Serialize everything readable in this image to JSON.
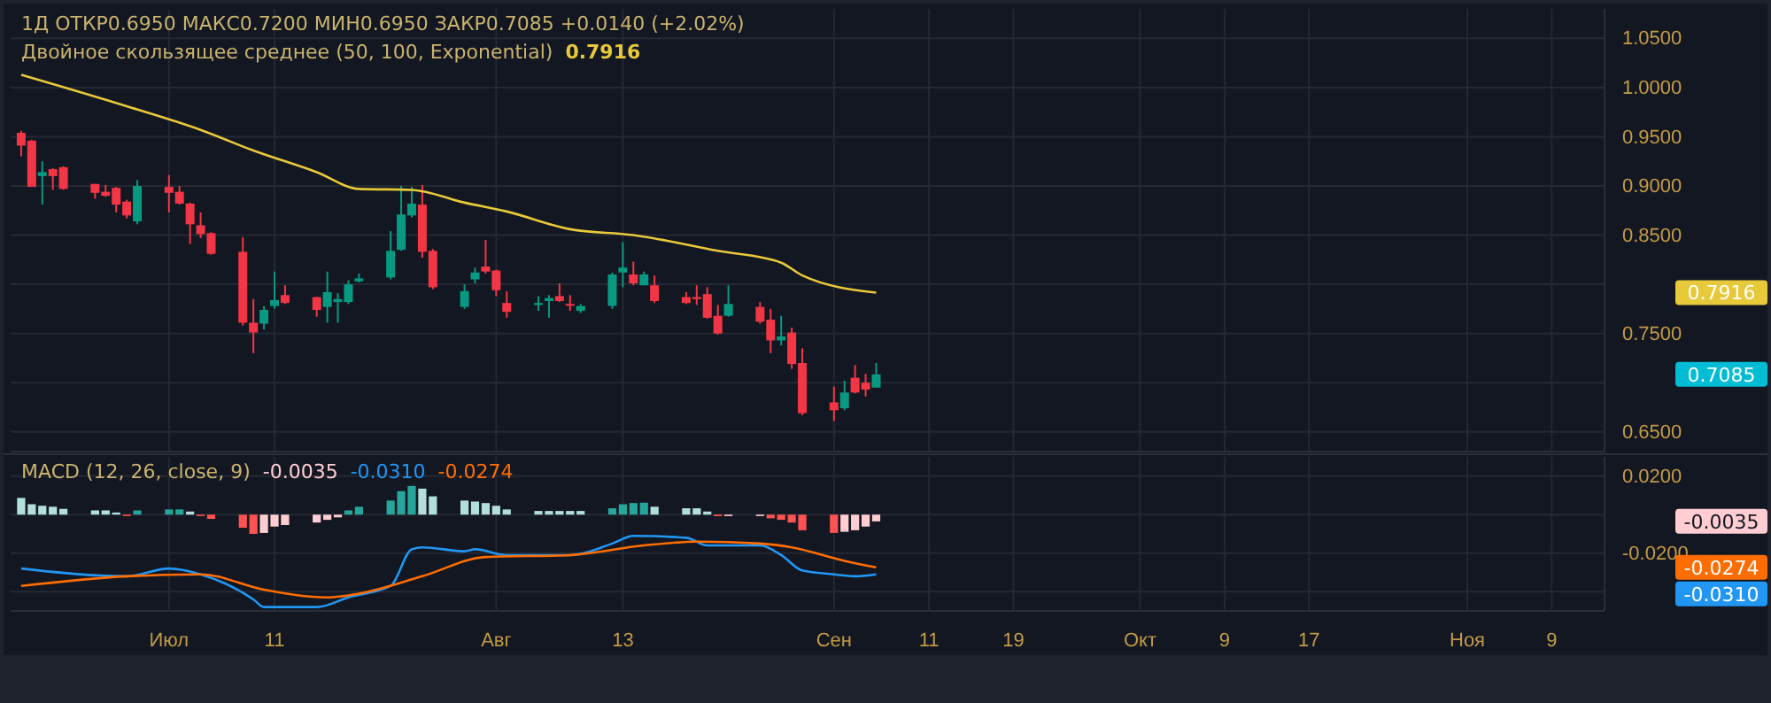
{
  "chart_data": [
    {
      "type": "candlestick",
      "title": "1Д ОТКР0.6950 МАКС0.7200 МИН0.6950 ЗАКР0.7085 +0.0140 (+2.02%)",
      "x": [
        "--06-17",
        "--06-18",
        "--06-19",
        "--06-20",
        "--06-21",
        "--06-24",
        "--06-25",
        "--06-26",
        "--06-27",
        "--06-28",
        "--07-01",
        "--07-02",
        "--07-03",
        "--07-04",
        "--07-05",
        "--07-08",
        "--07-09",
        "--07-10",
        "--07-11",
        "--07-12",
        "--07-15",
        "--07-16",
        "--07-17",
        "--07-18",
        "--07-19",
        "--07-22",
        "--07-23",
        "--07-24",
        "--07-25",
        "--07-26",
        "--07-29",
        "--07-30",
        "--07-31",
        "--08-01",
        "--08-02",
        "--08-05",
        "--08-06",
        "--08-07",
        "--08-08",
        "--08-09",
        "--08-12",
        "--08-13",
        "--08-14",
        "--08-15",
        "--08-16",
        "--08-19",
        "--08-20",
        "--08-21",
        "--08-22",
        "--08-23",
        "--08-26",
        "--08-27",
        "--08-28",
        "--08-29",
        "--08-30",
        "--09-02",
        "--09-03",
        "--09-04",
        "--09-05",
        "--09-06"
      ],
      "ohlc": [
        [
          0.954,
          0.956,
          0.93,
          0.941
        ],
        [
          0.946,
          0.947,
          0.899,
          0.899
        ],
        [
          0.91,
          0.925,
          0.881,
          0.914
        ],
        [
          0.917,
          0.918,
          0.896,
          0.91
        ],
        [
          0.919,
          0.92,
          0.896,
          0.897
        ],
        [
          0.902,
          0.902,
          0.887,
          0.893
        ],
        [
          0.894,
          0.901,
          0.889,
          0.89
        ],
        [
          0.898,
          0.899,
          0.873,
          0.881
        ],
        [
          0.884,
          0.886,
          0.867,
          0.87
        ],
        [
          0.864,
          0.906,
          0.861,
          0.9
        ],
        [
          0.899,
          0.911,
          0.873,
          0.893
        ],
        [
          0.894,
          0.9,
          0.881,
          0.882
        ],
        [
          0.882,
          0.883,
          0.841,
          0.861
        ],
        [
          0.86,
          0.873,
          0.847,
          0.851
        ],
        [
          0.852,
          0.853,
          0.83,
          0.831
        ],
        [
          0.833,
          0.848,
          0.758,
          0.761
        ],
        [
          0.761,
          0.785,
          0.73,
          0.751
        ],
        [
          0.76,
          0.778,
          0.754,
          0.774
        ],
        [
          0.778,
          0.813,
          0.775,
          0.784
        ],
        [
          0.789,
          0.799,
          0.78,
          0.781
        ],
        [
          0.787,
          0.787,
          0.767,
          0.774
        ],
        [
          0.777,
          0.813,
          0.761,
          0.792
        ],
        [
          0.782,
          0.791,
          0.761,
          0.785
        ],
        [
          0.782,
          0.804,
          0.78,
          0.8
        ],
        [
          0.803,
          0.811,
          0.802,
          0.806
        ],
        [
          0.807,
          0.854,
          0.805,
          0.834
        ],
        [
          0.835,
          0.9,
          0.834,
          0.871
        ],
        [
          0.87,
          0.899,
          0.868,
          0.882
        ],
        [
          0.881,
          0.901,
          0.827,
          0.833
        ],
        [
          0.834,
          0.836,
          0.795,
          0.797
        ],
        [
          0.777,
          0.8,
          0.775,
          0.793
        ],
        [
          0.805,
          0.817,
          0.801,
          0.812
        ],
        [
          0.818,
          0.845,
          0.811,
          0.813
        ],
        [
          0.814,
          0.815,
          0.788,
          0.794
        ],
        [
          0.781,
          0.793,
          0.766,
          0.772
        ],
        [
          0.779,
          0.788,
          0.773,
          0.781
        ],
        [
          0.783,
          0.789,
          0.766,
          0.786
        ],
        [
          0.788,
          0.801,
          0.782,
          0.783
        ],
        [
          0.78,
          0.789,
          0.773,
          0.779
        ],
        [
          0.773,
          0.78,
          0.771,
          0.778
        ],
        [
          0.778,
          0.812,
          0.775,
          0.81
        ],
        [
          0.812,
          0.843,
          0.797,
          0.817
        ],
        [
          0.81,
          0.823,
          0.799,
          0.801
        ],
        [
          0.799,
          0.813,
          0.799,
          0.81
        ],
        [
          0.799,
          0.809,
          0.781,
          0.783
        ],
        [
          0.787,
          0.792,
          0.78,
          0.781
        ],
        [
          0.787,
          0.799,
          0.779,
          0.785
        ],
        [
          0.79,
          0.797,
          0.765,
          0.766
        ],
        [
          0.768,
          0.779,
          0.749,
          0.75
        ],
        [
          0.768,
          0.799,
          0.767,
          0.78
        ],
        [
          0.777,
          0.782,
          0.76,
          0.762
        ],
        [
          0.764,
          0.775,
          0.73,
          0.743
        ],
        [
          0.743,
          0.768,
          0.738,
          0.747
        ],
        [
          0.751,
          0.756,
          0.714,
          0.719
        ],
        [
          0.72,
          0.735,
          0.667,
          0.669
        ],
        [
          0.68,
          0.696,
          0.661,
          0.672
        ],
        [
          0.674,
          0.702,
          0.672,
          0.69
        ],
        [
          0.705,
          0.718,
          0.689,
          0.69
        ],
        [
          0.7,
          0.709,
          0.686,
          0.693
        ],
        [
          0.695,
          0.72,
          0.695,
          0.7085
        ]
      ],
      "series": [
        {
          "name": "Двойное скользящее среднее (50, 100, Exponential)",
          "type": "line",
          "color": "#e8c93a",
          "x": [
            "--06-17",
            "--06-27",
            "--07-04",
            "--07-09",
            "--07-15",
            "--07-19",
            "--07-24",
            "--07-29",
            "--08-02",
            "--08-08",
            "--08-14",
            "--08-22",
            "--08-28",
            "--08-30",
            "--09-06"
          ],
          "values": [
            1.013,
            0.981,
            0.957,
            0.936,
            0.914,
            0.897,
            0.896,
            0.883,
            0.874,
            0.856,
            0.85,
            0.834,
            0.822,
            0.809,
            0.7916
          ]
        }
      ],
      "annotations": [
        "0.7916",
        "0.7085"
      ],
      "xlim": [
        "--06-16",
        "--11-14"
      ],
      "xticks": [
        {
          "value": "--07-01",
          "label": null
        },
        {
          "value": "--07-11",
          "label": null
        },
        {
          "value": "--08-01",
          "label": null
        },
        {
          "value": "--08-13",
          "label": null
        },
        {
          "value": "--09-02",
          "label": null
        },
        {
          "value": "--09-11",
          "label": null
        },
        {
          "value": "--09-19",
          "label": null
        },
        {
          "value": "--10-01",
          "label": null
        },
        {
          "value": "--10-09",
          "label": null
        },
        {
          "value": "--10-17",
          "label": null
        },
        {
          "value": "--11-01",
          "label": null
        },
        {
          "value": "--11-09",
          "label": null
        }
      ],
      "ylim": [
        0.63,
        1.08
      ],
      "yticks": [
        {
          "value": 0.65,
          "label": "0.6500"
        },
        {
          "value": 0.7,
          "label": null
        },
        {
          "value": 0.75,
          "label": "0.7500"
        },
        {
          "value": 0.8,
          "label": null
        },
        {
          "value": 0.85,
          "label": "0.8500"
        },
        {
          "value": 0.9,
          "label": "0.9000"
        },
        {
          "value": 0.95,
          "label": "0.9500"
        },
        {
          "value": 1.0,
          "label": "1.0000"
        },
        {
          "value": 1.05,
          "label": "1.0500"
        }
      ],
      "grid": true,
      "legend": "top left",
      "tick_labels": "y"
    },
    {
      "type": "bar",
      "title": "MACD (12, 26, close, 9)",
      "x": [
        "--06-17",
        "--06-18",
        "--06-19",
        "--06-20",
        "--06-21",
        "--06-24",
        "--06-25",
        "--06-26",
        "--06-27",
        "--06-28",
        "--07-01",
        "--07-02",
        "--07-03",
        "--07-04",
        "--07-05",
        "--07-08",
        "--07-09",
        "--07-10",
        "--07-11",
        "--07-12",
        "--07-15",
        "--07-16",
        "--07-17",
        "--07-18",
        "--07-19",
        "--07-22",
        "--07-23",
        "--07-24",
        "--07-25",
        "--07-26",
        "--07-29",
        "--07-30",
        "--07-31",
        "--08-01",
        "--08-02",
        "--08-05",
        "--08-06",
        "--08-07",
        "--08-08",
        "--08-09",
        "--08-12",
        "--08-13",
        "--08-14",
        "--08-15",
        "--08-16",
        "--08-19",
        "--08-20",
        "--08-21",
        "--08-22",
        "--08-23",
        "--08-26",
        "--08-27",
        "--08-28",
        "--08-29",
        "--08-30",
        "--09-02",
        "--09-03",
        "--09-04",
        "--09-05",
        "--09-06"
      ],
      "series": [
        {
          "type": "bar",
          "colors": [
            "#b2dfdb",
            "#b2dfdb",
            "#b2dfdb",
            "#b2dfdb",
            "#b2dfdb",
            "#b2dfdb",
            "#b2dfdb",
            "#b2dfdb",
            "#ff5252",
            "#26a69a",
            "#26a69a",
            "#26a69a",
            "#b2dfdb",
            "#ff5252",
            "#ff5252",
            "#ff5252",
            "#ff5252",
            "#ffcdd2",
            "#ffcdd2",
            "#ffcdd2",
            "#ffcdd2",
            "#ffcdd2",
            "#ffcdd2",
            "#26a69a",
            "#26a69a",
            "#26a69a",
            "#26a69a",
            "#26a69a",
            "#b2dfdb",
            "#b2dfdb",
            "#b2dfdb",
            "#b2dfdb",
            "#b2dfdb",
            "#b2dfdb",
            "#b2dfdb",
            "#b2dfdb",
            "#b2dfdb",
            "#b2dfdb",
            "#b2dfdb",
            "#b2dfdb",
            "#26a69a",
            "#26a69a",
            "#26a69a",
            "#26a69a",
            "#b2dfdb",
            "#b2dfdb",
            "#b2dfdb",
            "#b2dfdb",
            "#ff5252",
            "#ffcdd2",
            "#ffcdd2",
            "#ff5252",
            "#ff5252",
            "#ff5252",
            "#ff5252",
            "#ff5252",
            "#ffcdd2",
            "#ffcdd2",
            "#ffcdd2",
            "#ffcdd2"
          ],
          "values": [
            0.0087,
            0.0054,
            0.0046,
            0.0041,
            0.003,
            0.0022,
            0.0022,
            0.0011,
            -0.0003,
            0.0022,
            0.0027,
            0.0027,
            0.0016,
            -0.0003,
            -0.0022,
            -0.0068,
            -0.01,
            -0.0095,
            -0.0062,
            -0.0054,
            -0.0041,
            -0.0027,
            -0.0014,
            0.0022,
            0.0041,
            0.0073,
            0.0122,
            0.0149,
            0.0135,
            0.0095,
            0.0073,
            0.0068,
            0.006,
            0.0046,
            0.0027,
            0.0019,
            0.0019,
            0.0019,
            0.0019,
            0.0019,
            0.0033,
            0.0054,
            0.006,
            0.0062,
            0.0041,
            0.0033,
            0.0033,
            0.0016,
            -0.0008,
            -0.0005,
            -0.0003,
            -0.0019,
            -0.0027,
            -0.0041,
            -0.0081,
            -0.0095,
            -0.0089,
            -0.0081,
            -0.0062,
            -0.0035
          ]
        },
        {
          "type": "line",
          "color": "#2196f3",
          "x": [
            "--06-17",
            "--06-27",
            "--07-01",
            "--07-04",
            "--07-09",
            "--07-10",
            "--07-15",
            "--07-18",
            "--07-22",
            "--07-24",
            "--07-25",
            "--07-29",
            "--07-30",
            "--08-02",
            "--08-08",
            "--08-12",
            "--08-14",
            "--08-19",
            "--08-21",
            "--08-26",
            "--08-28",
            "--08-30",
            "--09-02",
            "--09-04",
            "--09-06"
          ],
          "values": [
            -0.028,
            -0.032,
            -0.028,
            -0.031,
            -0.044,
            -0.048,
            -0.048,
            -0.043,
            -0.037,
            -0.018,
            -0.017,
            -0.019,
            -0.018,
            -0.021,
            -0.021,
            -0.015,
            -0.011,
            -0.012,
            -0.016,
            -0.016,
            -0.021,
            -0.029,
            -0.031,
            -0.032,
            -0.031
          ]
        },
        {
          "type": "line",
          "color": "#ff6d00",
          "x": [
            "--06-17",
            "--06-27",
            "--07-04",
            "--07-10",
            "--07-16",
            "--07-19",
            "--07-25",
            "--07-31",
            "--08-08",
            "--08-15",
            "--08-20",
            "--08-26",
            "--08-29",
            "--09-03",
            "--09-06"
          ],
          "values": [
            -0.037,
            -0.032,
            -0.031,
            -0.039,
            -0.043,
            -0.041,
            -0.032,
            -0.022,
            -0.021,
            -0.016,
            -0.014,
            -0.015,
            -0.017,
            -0.024,
            -0.0274
          ]
        }
      ],
      "annotations": [
        "-0.0035",
        "-0.0310",
        "-0.0274"
      ],
      "xlim": [
        "--06-16",
        "--11-14"
      ],
      "xticks": [
        {
          "value": "--07-01",
          "label": "Июл"
        },
        {
          "value": "--07-11",
          "label": "11"
        },
        {
          "value": "--08-01",
          "label": "Авг"
        },
        {
          "value": "--08-13",
          "label": "13"
        },
        {
          "value": "--09-02",
          "label": "Сен"
        },
        {
          "value": "--09-11",
          "label": "11"
        },
        {
          "value": "--09-19",
          "label": "19"
        },
        {
          "value": "--10-01",
          "label": "Окт"
        },
        {
          "value": "--10-09",
          "label": "9"
        },
        {
          "value": "--10-17",
          "label": "17"
        },
        {
          "value": "--11-01",
          "label": "Ноя"
        },
        {
          "value": "--11-09",
          "label": "9"
        }
      ],
      "ylim": [
        -0.05,
        0.03
      ],
      "yticks": [
        {
          "value": 0.02,
          "label": "0.0200"
        },
        {
          "value": 0,
          "label": null
        },
        {
          "value": -0.02,
          "label": "-0.0200"
        },
        {
          "value": -0.04,
          "label": null
        }
      ],
      "grid": true
    }
  ]
}
